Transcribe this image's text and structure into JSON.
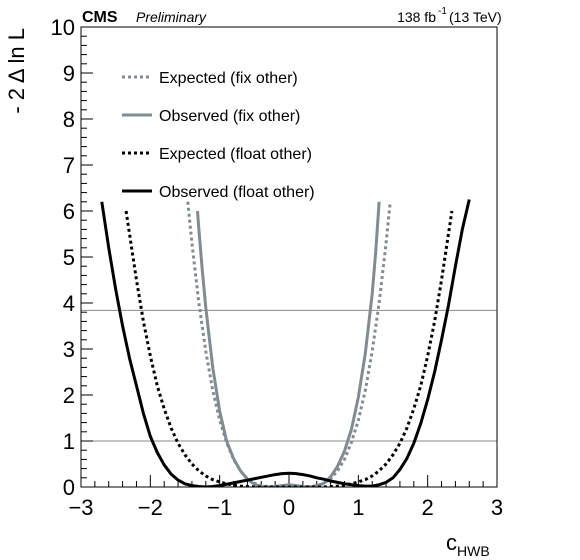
{
  "header": {
    "experiment": "CMS",
    "status": "Preliminary",
    "lumi": "138 fb",
    "lumi_exp": "-1",
    "energy": " (13 TeV)"
  },
  "chart_data": {
    "type": "line",
    "xlabel": "c",
    "xlabel_sub": "HWB",
    "ylabel": "- 2 Δ ln L",
    "xlim": [
      -3,
      3
    ],
    "ylim": [
      0,
      10
    ],
    "x_ticks": [
      "−3",
      "−2",
      "−1",
      "0",
      "1",
      "2",
      "3"
    ],
    "y_ticks": [
      "0",
      "1",
      "2",
      "3",
      "4",
      "5",
      "6",
      "7",
      "8",
      "9",
      "10"
    ],
    "reference_lines": [
      1,
      3.84
    ],
    "grid": false,
    "legend_position": "top-left",
    "series": [
      {
        "name": "Expected (fix other)",
        "color": "#7f8c94",
        "style": "dotted",
        "x": [
          -1.46,
          -1.4,
          -1.3,
          -1.2,
          -1.1,
          -1.0,
          -0.9,
          -0.8,
          -0.7,
          -0.6,
          -0.5,
          -0.4,
          -0.3,
          -0.2,
          -0.1,
          0,
          0.1,
          0.2,
          0.3,
          0.4,
          0.5,
          0.6,
          0.7,
          0.8,
          0.9,
          1.0,
          1.1,
          1.2,
          1.3,
          1.4,
          1.46
        ],
        "y": [
          6.2,
          5.3,
          4.0,
          2.95,
          2.1,
          1.45,
          0.97,
          0.6,
          0.35,
          0.18,
          0.08,
          0.03,
          0.01,
          0.0,
          0.0,
          0.0,
          0.0,
          0.0,
          0.01,
          0.03,
          0.08,
          0.18,
          0.35,
          0.6,
          0.97,
          1.45,
          2.1,
          2.95,
          4.0,
          5.3,
          6.2
        ]
      },
      {
        "name": "Observed (fix other)",
        "color": "#7f8c94",
        "style": "solid",
        "x": [
          -1.32,
          -1.3,
          -1.25,
          -1.2,
          -1.1,
          -1.0,
          -0.9,
          -0.8,
          -0.7,
          -0.6,
          -0.5,
          -0.4,
          -0.3,
          -0.2,
          -0.1,
          0,
          0.1,
          0.2,
          0.3,
          0.4,
          0.5,
          0.6,
          0.7,
          0.8,
          0.9,
          1.0,
          1.1,
          1.2,
          1.25,
          1.3
        ],
        "y": [
          6.0,
          5.6,
          4.7,
          3.9,
          2.6,
          1.65,
          1.0,
          0.62,
          0.35,
          0.17,
          0.06,
          0.01,
          0.0,
          0.01,
          0.03,
          0.05,
          0.03,
          0.01,
          0.0,
          0.02,
          0.08,
          0.22,
          0.45,
          0.78,
          1.25,
          1.95,
          2.9,
          4.2,
          5.1,
          6.2
        ]
      },
      {
        "name": "Expected (float other)",
        "color": "#000000",
        "style": "dotted",
        "x": [
          -2.35,
          -2.2,
          -2.1,
          -2.0,
          -1.9,
          -1.8,
          -1.7,
          -1.6,
          -1.5,
          -1.4,
          -1.3,
          -1.2,
          -1.1,
          -1.0,
          -0.9,
          -0.8,
          -0.7,
          -0.6,
          -0.5,
          -0.4,
          -0.3,
          -0.2,
          -0.1,
          0,
          0.1,
          0.2,
          0.3,
          0.4,
          0.5,
          0.6,
          0.7,
          0.8,
          0.9,
          1.0,
          1.1,
          1.2,
          1.3,
          1.4,
          1.5,
          1.6,
          1.7,
          1.8,
          1.9,
          2.0,
          2.1,
          2.2,
          2.35
        ],
        "y": [
          6.0,
          4.5,
          3.6,
          2.85,
          2.2,
          1.7,
          1.28,
          0.95,
          0.7,
          0.5,
          0.35,
          0.24,
          0.16,
          0.11,
          0.07,
          0.04,
          0.02,
          0.01,
          0.0,
          0.0,
          0.0,
          0.0,
          0.0,
          0.0,
          0.0,
          0.0,
          0.0,
          0.0,
          0.0,
          0.01,
          0.02,
          0.04,
          0.07,
          0.11,
          0.16,
          0.24,
          0.35,
          0.5,
          0.7,
          0.95,
          1.28,
          1.7,
          2.2,
          2.85,
          3.6,
          4.5,
          6.0
        ]
      },
      {
        "name": "Observed (float other)",
        "color": "#000000",
        "style": "solid",
        "x": [
          -2.7,
          -2.6,
          -2.5,
          -2.4,
          -2.3,
          -2.2,
          -2.1,
          -2.0,
          -1.9,
          -1.8,
          -1.7,
          -1.6,
          -1.5,
          -1.4,
          -1.3,
          -1.2,
          -1.1,
          -1.0,
          -0.9,
          -0.8,
          -0.7,
          -0.6,
          -0.5,
          -0.4,
          -0.3,
          -0.2,
          -0.1,
          0,
          0.1,
          0.2,
          0.3,
          0.4,
          0.5,
          0.6,
          0.7,
          0.8,
          0.9,
          1.0,
          1.1,
          1.2,
          1.3,
          1.4,
          1.5,
          1.6,
          1.7,
          1.8,
          1.9,
          2.0,
          2.1,
          2.2,
          2.3,
          2.4,
          2.5,
          2.6
        ],
        "y": [
          6.2,
          5.2,
          4.3,
          3.5,
          2.8,
          2.2,
          1.6,
          1.1,
          0.75,
          0.48,
          0.28,
          0.15,
          0.07,
          0.03,
          0.01,
          0.0,
          0.01,
          0.03,
          0.06,
          0.09,
          0.12,
          0.15,
          0.18,
          0.21,
          0.24,
          0.27,
          0.29,
          0.3,
          0.29,
          0.27,
          0.24,
          0.2,
          0.17,
          0.13,
          0.1,
          0.07,
          0.05,
          0.03,
          0.02,
          0.02,
          0.05,
          0.1,
          0.2,
          0.38,
          0.62,
          0.95,
          1.38,
          1.9,
          2.5,
          3.2,
          3.95,
          4.8,
          5.6,
          6.25
        ]
      }
    ]
  }
}
